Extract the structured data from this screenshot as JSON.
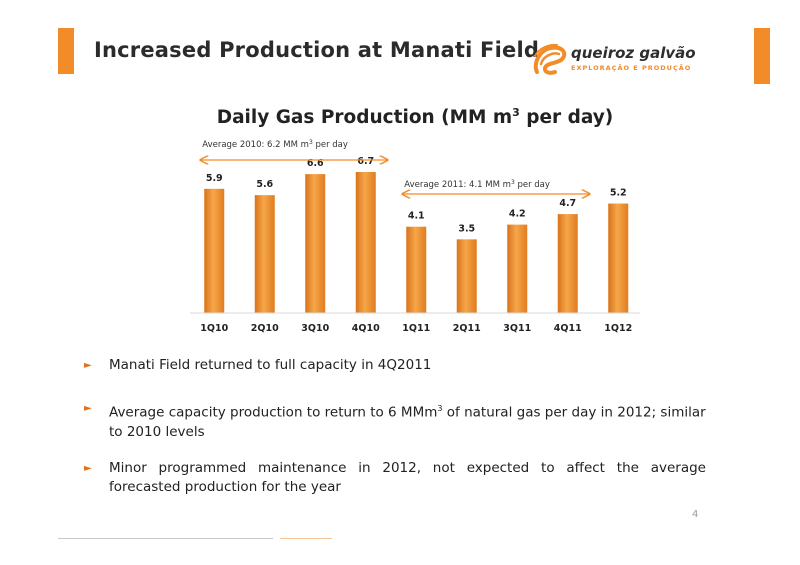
{
  "slide": {
    "title": "Increased Production at Manati Field",
    "page_number": "4"
  },
  "logo": {
    "name": "queiroz galvão",
    "tagline": "EXPLORAÇÃO E PRODUÇÃO"
  },
  "colors": {
    "accent": "#f28c28",
    "bar": "#f0902c",
    "bullet": "#e0701a"
  },
  "chart_data": {
    "type": "bar",
    "title_main": "Daily Gas Production (MM m",
    "title_sup": "3",
    "title_tail": " per day)",
    "categories": [
      "1Q10",
      "2Q10",
      "3Q10",
      "4Q10",
      "1Q11",
      "2Q11",
      "3Q11",
      "4Q11",
      "1Q12"
    ],
    "values": [
      5.9,
      5.6,
      6.6,
      6.7,
      4.1,
      3.5,
      4.2,
      4.7,
      5.2
    ],
    "value_labels": [
      "5.9",
      "5.6",
      "6.6",
      "6.7",
      "4.1",
      "3.5",
      "4.2",
      "4.7",
      "5.2"
    ],
    "ylim": [
      0,
      6.7
    ],
    "annotations": [
      {
        "text": "Average 2010: 6.2 MM m",
        "sup": "3",
        "tail": " per day",
        "from": "1Q10",
        "to": "4Q10"
      },
      {
        "text": "Average 2011: 4.1 MM m",
        "sup": "3",
        "tail": " per day",
        "from": "1Q11",
        "to": "4Q11"
      }
    ]
  },
  "bullets": [
    {
      "text": "Manati Field returned to full capacity in 4Q2011"
    },
    {
      "text_before": "Average capacity production to return to 6 MMm",
      "sup": "3",
      "text_after": " of natural gas per day in 2012; similar to 2010 levels"
    },
    {
      "text": "Minor programmed maintenance in 2012, not expected to affect the average forecasted production for the year"
    }
  ],
  "bullet_marker": "►"
}
